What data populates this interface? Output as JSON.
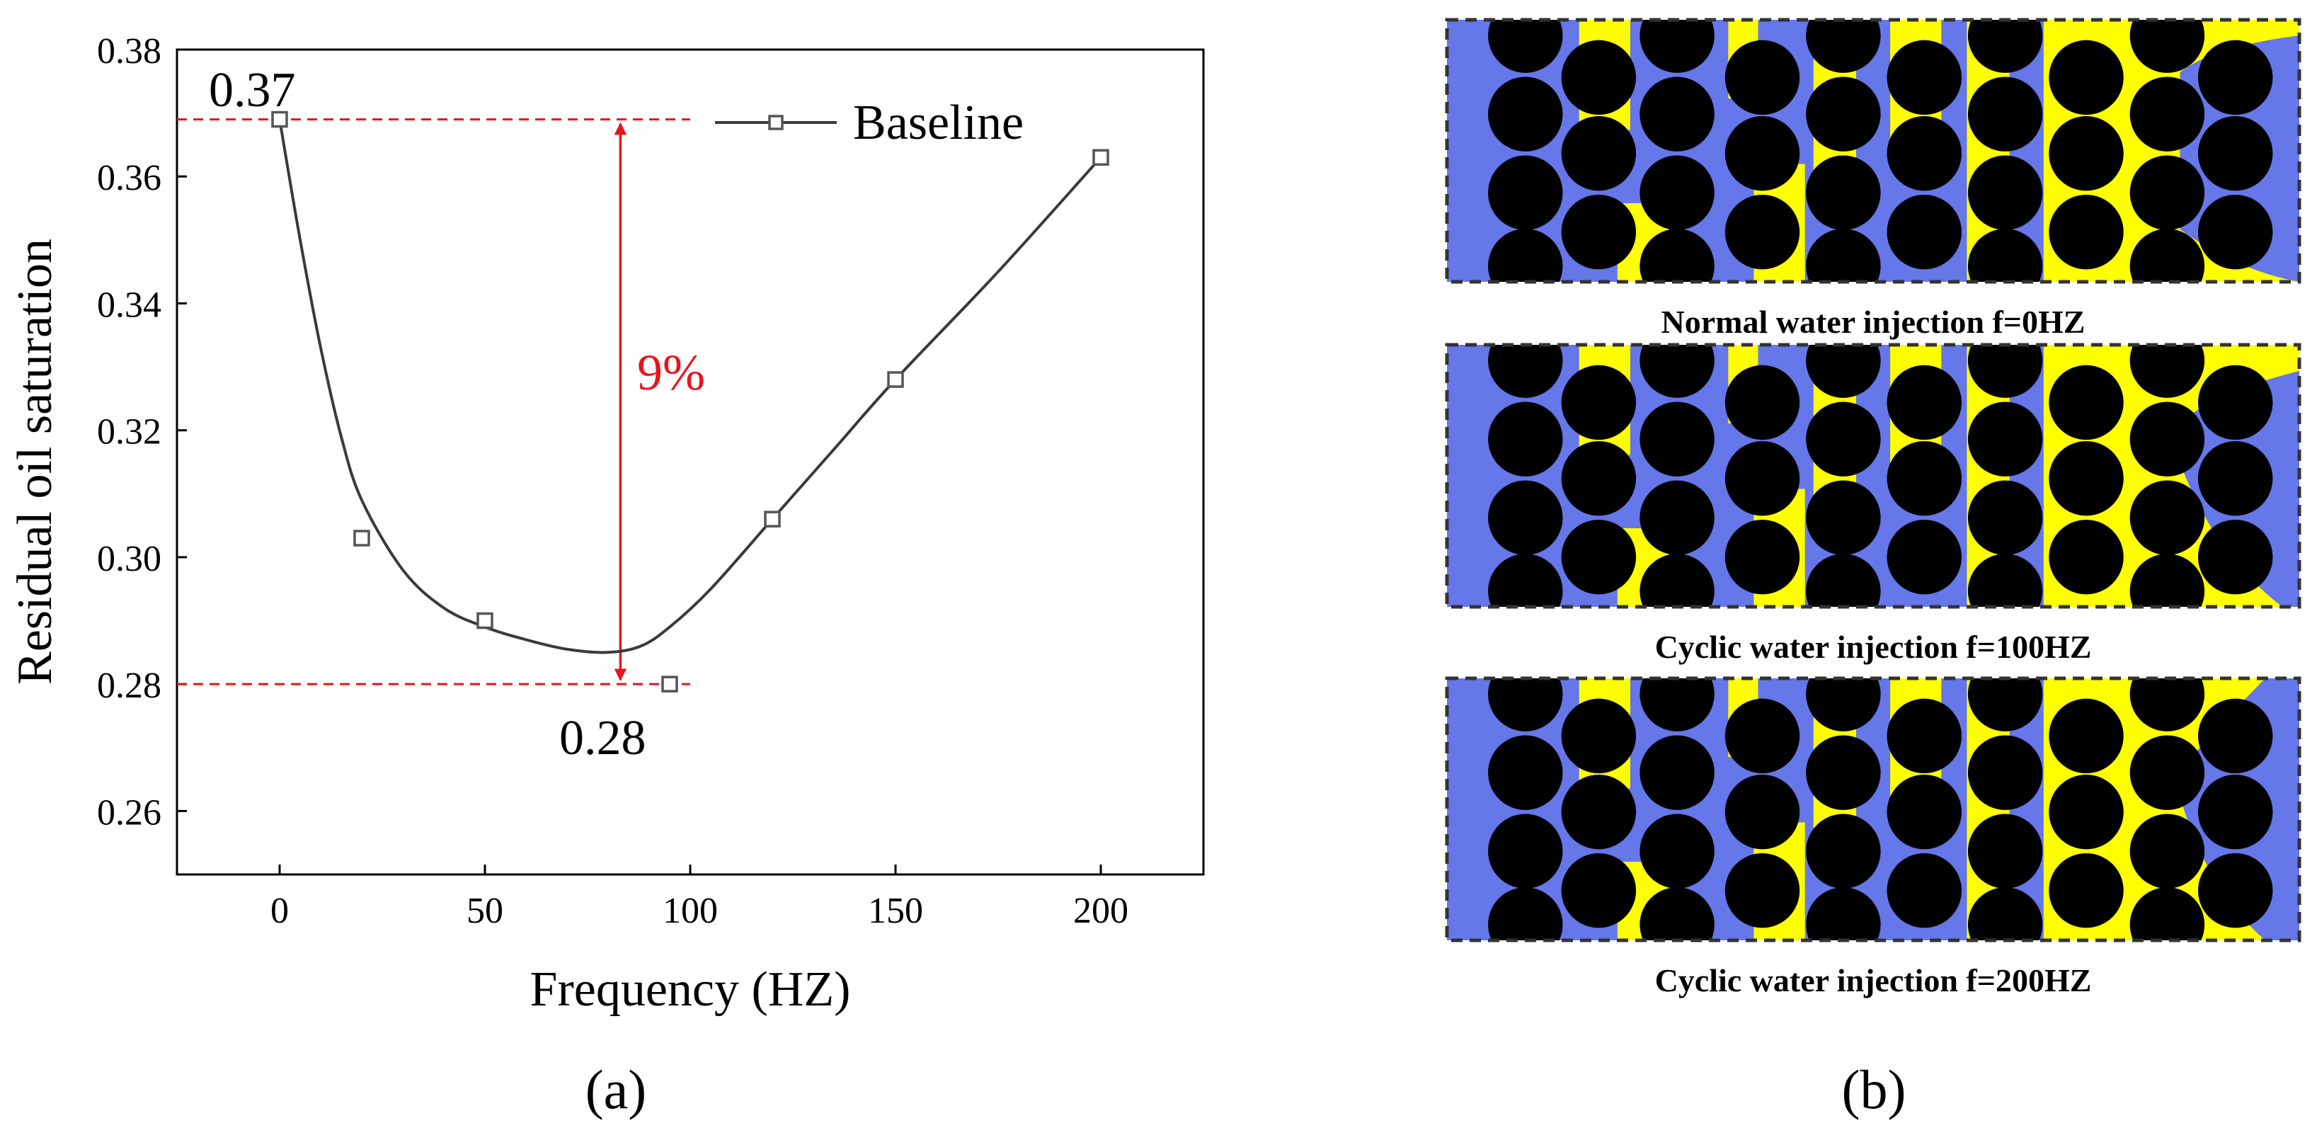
{
  "colors": {
    "axis": "#000000",
    "curve": "#3a3a3a",
    "marker": "#555555",
    "annotation": "#e8141b",
    "water": "#6577e9",
    "oil": "#ffff00",
    "grain": "#000000",
    "frame_dash": "#333333"
  },
  "chart_data": {
    "type": "scatter",
    "title": "",
    "xlabel": "Frequency (HZ)",
    "ylabel": "Residual oil saturation",
    "xlim": [
      -25,
      225
    ],
    "ylim": [
      0.25,
      0.38
    ],
    "xticks": [
      0,
      50,
      100,
      150,
      200
    ],
    "yticks": [
      0.26,
      0.28,
      0.3,
      0.32,
      0.34,
      0.36,
      0.38
    ],
    "xtick_labels": [
      "0",
      "50",
      "100",
      "150",
      "200"
    ],
    "ytick_labels": [
      "0.26",
      "0.28",
      "0.30",
      "0.32",
      "0.34",
      "0.36",
      "0.38"
    ],
    "grid": false,
    "legend_position": "top-right",
    "series": [
      {
        "name": "Baseline",
        "marker": "open-square",
        "points": [
          {
            "x": 0,
            "y": 0.369
          },
          {
            "x": 20,
            "y": 0.303
          },
          {
            "x": 50,
            "y": 0.29
          },
          {
            "x": 95,
            "y": 0.28
          },
          {
            "x": 120,
            "y": 0.306
          },
          {
            "x": 150,
            "y": 0.328
          },
          {
            "x": 200,
            "y": 0.363
          }
        ],
        "fit_curve": [
          {
            "x": 0,
            "y": 0.369
          },
          {
            "x": 5,
            "y": 0.35
          },
          {
            "x": 10,
            "y": 0.333
          },
          {
            "x": 15,
            "y": 0.319
          },
          {
            "x": 20,
            "y": 0.309
          },
          {
            "x": 30,
            "y": 0.298
          },
          {
            "x": 40,
            "y": 0.292
          },
          {
            "x": 50,
            "y": 0.289
          },
          {
            "x": 60,
            "y": 0.287
          },
          {
            "x": 70,
            "y": 0.2855
          },
          {
            "x": 80,
            "y": 0.285
          },
          {
            "x": 88,
            "y": 0.286
          },
          {
            "x": 95,
            "y": 0.289
          },
          {
            "x": 105,
            "y": 0.295
          },
          {
            "x": 120,
            "y": 0.306
          },
          {
            "x": 135,
            "y": 0.317
          },
          {
            "x": 150,
            "y": 0.328
          },
          {
            "x": 175,
            "y": 0.345
          },
          {
            "x": 200,
            "y": 0.363
          }
        ]
      }
    ],
    "annotations": {
      "upper_value_label": "0.37",
      "lower_value_label": "0.28",
      "upper_level": 0.369,
      "lower_level": 0.28,
      "dashed_line_x_end": 100,
      "arrow_x": 83,
      "difference_label": "9%"
    }
  },
  "subfigure_labels": {
    "a": "(a)",
    "b": "(b)"
  },
  "panels": [
    {
      "caption": "Normal water injection f=0HZ",
      "variant": 0
    },
    {
      "caption": "Cyclic water injection f=100HZ",
      "variant": 1
    },
    {
      "caption": "Cyclic water injection f=200HZ",
      "variant": 2
    }
  ]
}
